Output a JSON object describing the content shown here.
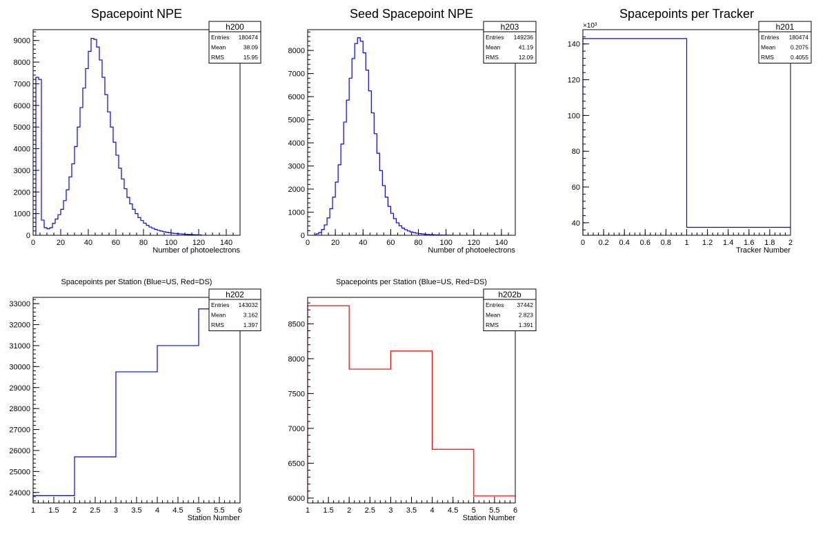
{
  "colors": {
    "us": "#0000ff",
    "ds": "#ff0000",
    "axis": "#000000",
    "background": "#ffffff"
  },
  "chart_data": [
    {
      "type": "histogram",
      "title": "Spacepoint NPE",
      "xlabel": "Number of photoelectrons",
      "ylabel": "",
      "xlim": [
        0,
        150
      ],
      "ylim": [
        0,
        9500
      ],
      "xticks": [
        0,
        20,
        40,
        60,
        80,
        100,
        120,
        140
      ],
      "xtick_labels": [
        "0",
        "20",
        "40",
        "60",
        "80",
        "100",
        "120",
        "140"
      ],
      "yticks": [
        0,
        1000,
        2000,
        3000,
        4000,
        5000,
        6000,
        7000,
        8000,
        9000
      ],
      "ytick_labels": [
        "0",
        "1000",
        "2000",
        "3000",
        "4000",
        "5000",
        "6000",
        "7000",
        "8000",
        "9000"
      ],
      "color": "#0000ff",
      "bin_width": 2,
      "bin_start": 2,
      "values": [
        7300,
        7200,
        700,
        350,
        300,
        350,
        550,
        750,
        950,
        1200,
        1600,
        2100,
        2700,
        3300,
        4100,
        5000,
        5900,
        6800,
        7700,
        8500,
        9100,
        9050,
        8700,
        8100,
        7300,
        6500,
        5700,
        5000,
        4300,
        3700,
        3100,
        2600,
        2150,
        1750,
        1450,
        1200,
        1000,
        820,
        680,
        560,
        460,
        380,
        320,
        270,
        230,
        195,
        165,
        140,
        120,
        100,
        85,
        72,
        62,
        52,
        44,
        37,
        31,
        26,
        22,
        18
      ],
      "stats": {
        "name": "h200",
        "rows": [
          [
            "Entries",
            "180474"
          ],
          [
            "Mean",
            "38.09"
          ],
          [
            "RMS",
            "15.95"
          ]
        ]
      }
    },
    {
      "type": "histogram",
      "title": "Seed Spacepoint NPE",
      "xlabel": "Number of photoelectrons",
      "ylabel": "",
      "xlim": [
        0,
        150
      ],
      "ylim": [
        0,
        8900
      ],
      "xticks": [
        0,
        20,
        40,
        60,
        80,
        100,
        120,
        140
      ],
      "xtick_labels": [
        "0",
        "20",
        "40",
        "60",
        "80",
        "100",
        "120",
        "140"
      ],
      "yticks": [
        0,
        1000,
        2000,
        3000,
        4000,
        5000,
        6000,
        7000,
        8000
      ],
      "ytick_labels": [
        "0",
        "1000",
        "2000",
        "3000",
        "4000",
        "5000",
        "6000",
        "7000",
        "8000"
      ],
      "color": "#0000ff",
      "bin_width": 2,
      "bin_start": 6,
      "values": [
        60,
        120,
        250,
        450,
        750,
        1150,
        1650,
        2300,
        3050,
        3950,
        4900,
        5850,
        6800,
        7650,
        8300,
        8550,
        8400,
        7900,
        7150,
        6250,
        5300,
        4400,
        3550,
        2800,
        2150,
        1650,
        1250,
        950,
        720,
        540,
        410,
        310,
        240,
        185,
        145,
        115,
        90,
        70,
        55,
        45,
        35,
        28,
        22,
        17,
        13,
        10,
        8,
        6,
        5
      ],
      "stats": {
        "name": "h203",
        "rows": [
          [
            "Entries",
            "149236"
          ],
          [
            "Mean",
            "41.19"
          ],
          [
            "RMS",
            "12.09"
          ]
        ]
      }
    },
    {
      "type": "histogram",
      "title": "Spacepoints per Tracker",
      "xlabel": "Tracker Number",
      "ylabel": "",
      "xlim": [
        0,
        2
      ],
      "ylim": [
        33,
        148
      ],
      "exponent": "×10³",
      "xticks": [
        0,
        0.2,
        0.4,
        0.6,
        0.8,
        1,
        1.2,
        1.4,
        1.6,
        1.8,
        2
      ],
      "xtick_labels": [
        "0",
        "0.2",
        "0.4",
        "0.6",
        "0.8",
        "1",
        "1.2",
        "1.4",
        "1.6",
        "1.8",
        "2"
      ],
      "yticks": [
        40,
        60,
        80,
        100,
        120,
        140
      ],
      "ytick_labels": [
        "40",
        "60",
        "80",
        "100",
        "120",
        "140"
      ],
      "color": "#0000ff",
      "bin_width": 1,
      "bin_start": 0,
      "values": [
        143.032,
        37.442
      ],
      "stats": {
        "name": "h201",
        "rows": [
          [
            "Entries",
            "180474"
          ],
          [
            "Mean",
            "0.2075"
          ],
          [
            "RMS",
            "0.4055"
          ]
        ]
      }
    },
    {
      "type": "histogram",
      "title": "Spacepoints per Station (Blue=US, Red=DS)",
      "xlabel": "Station Number",
      "ylabel": "",
      "xlim": [
        1,
        6
      ],
      "ylim": [
        23500,
        33300
      ],
      "xticks": [
        1,
        1.5,
        2,
        2.5,
        3,
        3.5,
        4,
        4.5,
        5,
        5.5,
        6
      ],
      "xtick_labels": [
        "1",
        "1.5",
        "2",
        "2.5",
        "3",
        "3.5",
        "4",
        "4.5",
        "5",
        "5.5",
        "6"
      ],
      "yticks": [
        24000,
        25000,
        26000,
        27000,
        28000,
        29000,
        30000,
        31000,
        32000,
        33000
      ],
      "ytick_labels": [
        "24000",
        "25000",
        "26000",
        "27000",
        "28000",
        "29000",
        "30000",
        "31000",
        "32000",
        "33000"
      ],
      "color": "#0000ff",
      "bin_width": 1,
      "bin_start": 1,
      "values": [
        23850,
        25700,
        29750,
        31000,
        32750
      ],
      "stats": {
        "name": "h202",
        "rows": [
          [
            "Entries",
            "143032"
          ],
          [
            "Mean",
            "3.162"
          ],
          [
            "RMS",
            "1.397"
          ]
        ]
      }
    },
    {
      "type": "histogram",
      "title": "Spacepoints per Station (Blue=US, Red=DS)",
      "xlabel": "Station Number",
      "ylabel": "",
      "xlim": [
        1,
        6
      ],
      "ylim": [
        5930,
        8880
      ],
      "xticks": [
        1,
        1.5,
        2,
        2.5,
        3,
        3.5,
        4,
        4.5,
        5,
        5.5,
        6
      ],
      "xtick_labels": [
        "1",
        "1.5",
        "2",
        "2.5",
        "3",
        "3.5",
        "4",
        "4.5",
        "5",
        "5.5",
        "6"
      ],
      "yticks": [
        6000,
        6500,
        7000,
        7500,
        8000,
        8500
      ],
      "ytick_labels": [
        "6000",
        "6500",
        "7000",
        "7500",
        "8000",
        "8500"
      ],
      "color": "#ff0000",
      "bin_width": 1,
      "bin_start": 1,
      "values": [
        8760,
        7850,
        8110,
        6700,
        6030
      ],
      "stats": {
        "name": "h202b",
        "rows": [
          [
            "Entries",
            "37442"
          ],
          [
            "Mean",
            "2.823"
          ],
          [
            "RMS",
            "1.391"
          ]
        ]
      }
    }
  ]
}
